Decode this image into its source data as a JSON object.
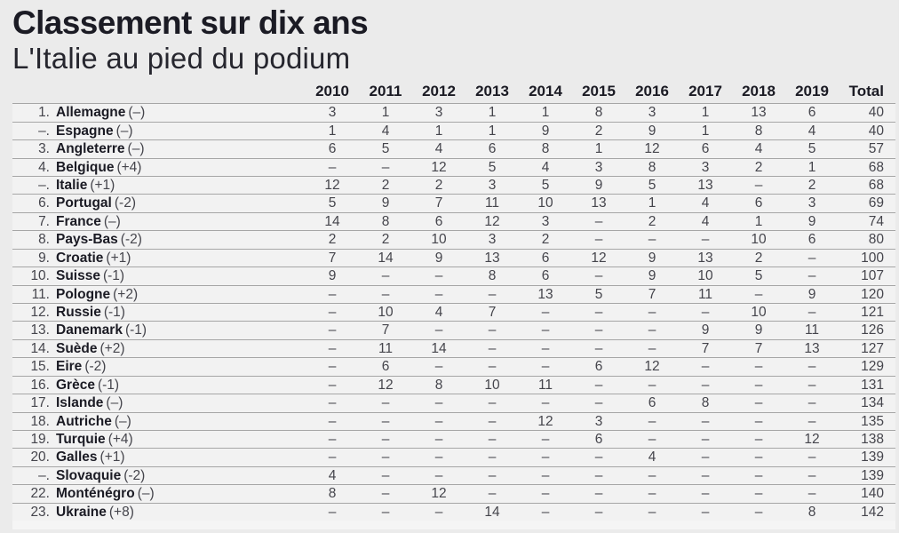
{
  "title": "Classement sur dix ans",
  "subtitle": "L'Italie au pied du podium",
  "colors": {
    "bg_panel": "#ebebeb",
    "bg_row": "#f2f2f2",
    "bg_strip": "#f5f5f5",
    "line": "#a6a6a6",
    "text_dark": "#1b1b24",
    "text_subtitle": "#26262e",
    "text_body": "#45454c"
  },
  "chart_data": {
    "type": "table",
    "title": "Classement sur dix ans",
    "subtitle": "L'Italie au pied du podium",
    "year_headers": [
      "2010",
      "2011",
      "2012",
      "2013",
      "2014",
      "2015",
      "2016",
      "2017",
      "2018",
      "2019"
    ],
    "total_header": "Total",
    "rows": [
      {
        "rank": "1.",
        "country": "Allemagne",
        "change": "(–)",
        "values": [
          "3",
          "1",
          "3",
          "1",
          "1",
          "8",
          "3",
          "1",
          "13",
          "6"
        ],
        "total": "40"
      },
      {
        "rank": "–.",
        "country": "Espagne",
        "change": "(–)",
        "values": [
          "1",
          "4",
          "1",
          "1",
          "9",
          "2",
          "9",
          "1",
          "8",
          "4"
        ],
        "total": "40"
      },
      {
        "rank": "3.",
        "country": "Angleterre",
        "change": "(–)",
        "values": [
          "6",
          "5",
          "4",
          "6",
          "8",
          "1",
          "12",
          "6",
          "4",
          "5"
        ],
        "total": "57"
      },
      {
        "rank": "4.",
        "country": "Belgique",
        "change": "(+4)",
        "values": [
          "–",
          "–",
          "12",
          "5",
          "4",
          "3",
          "8",
          "3",
          "2",
          "1"
        ],
        "total": "68"
      },
      {
        "rank": "–.",
        "country": "Italie",
        "change": "(+1)",
        "values": [
          "12",
          "2",
          "2",
          "3",
          "5",
          "9",
          "5",
          "13",
          "–",
          "2"
        ],
        "total": "68"
      },
      {
        "rank": "6.",
        "country": "Portugal",
        "change": "(-2)",
        "values": [
          "5",
          "9",
          "7",
          "11",
          "10",
          "13",
          "1",
          "4",
          "6",
          "3"
        ],
        "total": "69"
      },
      {
        "rank": "7.",
        "country": "France",
        "change": "(–)",
        "values": [
          "14",
          "8",
          "6",
          "12",
          "3",
          "–",
          "2",
          "4",
          "1",
          "9"
        ],
        "total": "74"
      },
      {
        "rank": "8.",
        "country": "Pays-Bas",
        "change": "(-2)",
        "values": [
          "2",
          "2",
          "10",
          "3",
          "2",
          "–",
          "–",
          "–",
          "10",
          "6"
        ],
        "total": "80"
      },
      {
        "rank": "9.",
        "country": "Croatie",
        "change": "(+1)",
        "values": [
          "7",
          "14",
          "9",
          "13",
          "6",
          "12",
          "9",
          "13",
          "2",
          "–"
        ],
        "total": "100"
      },
      {
        "rank": "10.",
        "country": "Suisse",
        "change": "(-1)",
        "values": [
          "9",
          "–",
          "–",
          "8",
          "6",
          "–",
          "9",
          "10",
          "5",
          "–"
        ],
        "total": "107"
      },
      {
        "rank": "11.",
        "country": "Pologne",
        "change": "(+2)",
        "values": [
          "–",
          "–",
          "–",
          "–",
          "13",
          "5",
          "7",
          "11",
          "–",
          "9"
        ],
        "total": "120"
      },
      {
        "rank": "12.",
        "country": "Russie",
        "change": "(-1)",
        "values": [
          "–",
          "10",
          "4",
          "7",
          "–",
          "–",
          "–",
          "–",
          "10",
          "–"
        ],
        "total": "121"
      },
      {
        "rank": "13.",
        "country": "Danemark",
        "change": "(-1)",
        "values": [
          "–",
          "7",
          "–",
          "–",
          "–",
          "–",
          "–",
          "9",
          "9",
          "11"
        ],
        "total": "126"
      },
      {
        "rank": "14.",
        "country": "Suède",
        "change": "(+2)",
        "values": [
          "–",
          "11",
          "14",
          "–",
          "–",
          "–",
          "–",
          "7",
          "7",
          "13"
        ],
        "total": "127"
      },
      {
        "rank": "15.",
        "country": "Eire",
        "change": "(-2)",
        "values": [
          "–",
          "6",
          "–",
          "–",
          "–",
          "6",
          "12",
          "–",
          "–",
          "–"
        ],
        "total": "129"
      },
      {
        "rank": "16.",
        "country": "Grèce",
        "change": "(-1)",
        "values": [
          "–",
          "12",
          "8",
          "10",
          "11",
          "–",
          "–",
          "–",
          "–",
          "–"
        ],
        "total": "131"
      },
      {
        "rank": "17.",
        "country": "Islande",
        "change": "(–)",
        "values": [
          "–",
          "–",
          "–",
          "–",
          "–",
          "–",
          "6",
          "8",
          "–",
          "–"
        ],
        "total": "134"
      },
      {
        "rank": "18.",
        "country": "Autriche",
        "change": "(–)",
        "values": [
          "–",
          "–",
          "–",
          "–",
          "12",
          "3",
          "–",
          "–",
          "–",
          "–"
        ],
        "total": "135"
      },
      {
        "rank": "19.",
        "country": "Turquie",
        "change": "(+4)",
        "values": [
          "–",
          "–",
          "–",
          "–",
          "–",
          "6",
          "–",
          "–",
          "–",
          "12"
        ],
        "total": "138"
      },
      {
        "rank": "20.",
        "country": "Galles",
        "change": "(+1)",
        "values": [
          "–",
          "–",
          "–",
          "–",
          "–",
          "–",
          "4",
          "–",
          "–",
          "–"
        ],
        "total": "139"
      },
      {
        "rank": "–.",
        "country": "Slovaquie",
        "change": "(-2)",
        "values": [
          "4",
          "–",
          "–",
          "–",
          "–",
          "–",
          "–",
          "–",
          "–",
          "–"
        ],
        "total": "139"
      },
      {
        "rank": "22.",
        "country": "Monténégro",
        "change": "(–)",
        "values": [
          "8",
          "–",
          "12",
          "–",
          "–",
          "–",
          "–",
          "–",
          "–",
          "–"
        ],
        "total": "140"
      },
      {
        "rank": "23.",
        "country": "Ukraine",
        "change": "(+8)",
        "values": [
          "–",
          "–",
          "–",
          "14",
          "–",
          "–",
          "–",
          "–",
          "–",
          "8"
        ],
        "total": "142"
      }
    ]
  }
}
